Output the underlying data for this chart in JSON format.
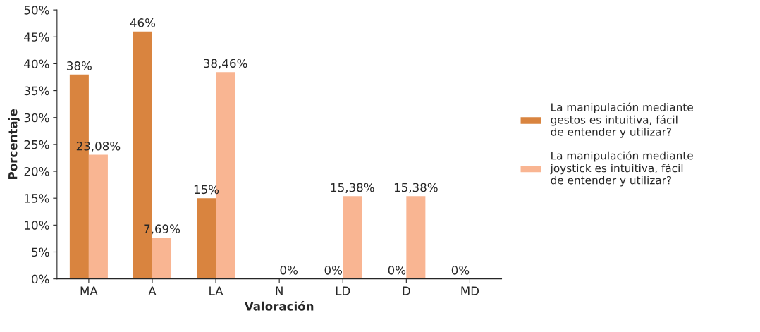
{
  "chart_data": {
    "type": "bar",
    "xlabel": "Valoración",
    "ylabel": "Porcentaje",
    "categories": [
      "MA",
      "A",
      "LA",
      "N",
      "LD",
      "D",
      "MD"
    ],
    "series": [
      {
        "name": "La manipulación mediante gestos es intuitiva, fácil de entender y utilizar?",
        "color": "#d9843f",
        "values": [
          38,
          46,
          15,
          0,
          0,
          0,
          0
        ],
        "value_labels": [
          "38%",
          "46%",
          "15%",
          null,
          "0%",
          "0%",
          "0%"
        ]
      },
      {
        "name": "La manipulación mediante joystick es intuitiva, fácil de entender y utilizar?",
        "color": "#f9b592",
        "values": [
          23.08,
          7.69,
          38.46,
          0,
          15.38,
          15.38,
          0
        ],
        "value_labels": [
          "23,08%",
          "7,69%",
          "38,46%",
          "0%",
          "15,38%",
          "15,38%",
          null
        ]
      }
    ],
    "ylim": [
      0,
      50
    ],
    "yticks": [
      {
        "value": 0,
        "label": "0%"
      },
      {
        "value": 5,
        "label": "5%"
      },
      {
        "value": 10,
        "label": "10%"
      },
      {
        "value": 15,
        "label": "15%"
      },
      {
        "value": 20,
        "label": "20%"
      },
      {
        "value": 25,
        "label": "25%"
      },
      {
        "value": 30,
        "label": "30%"
      },
      {
        "value": 35,
        "label": "35%"
      },
      {
        "value": 40,
        "label": "40%"
      },
      {
        "value": 45,
        "label": "45%"
      },
      {
        "value": 50,
        "label": "50%"
      }
    ],
    "grid": false,
    "legend": "right"
  }
}
